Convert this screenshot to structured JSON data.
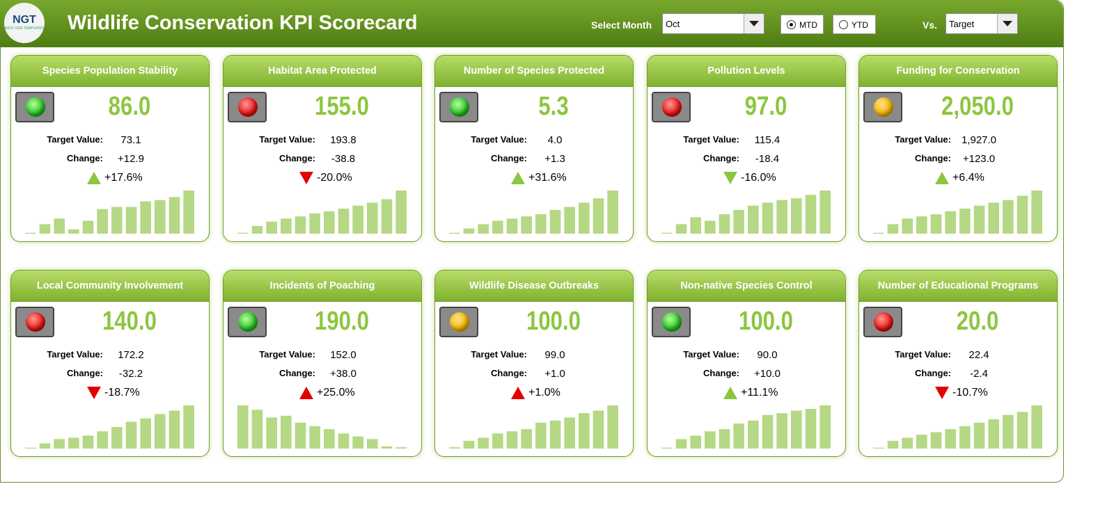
{
  "header": {
    "logo": "NGT",
    "logo_sub": "NEXT GEN TEMPLATES",
    "title": "Wildlife Conservation KPI Scorecard",
    "month_label": "Select Month",
    "month": "Oct",
    "mode_options": [
      "MTD",
      "YTD"
    ],
    "mode_selected": "MTD",
    "vs_label": "Vs.",
    "vs": "Target"
  },
  "labels": {
    "target": "Target Value:",
    "change": "Change:"
  },
  "cards": [
    {
      "title": "Species Population Stability",
      "value": "86.0",
      "light": "green",
      "target": "73.1",
      "change": "+12.9",
      "direction": "up",
      "arrow": "green",
      "pct": "+17.6%",
      "bars": [
        2,
        22,
        35,
        10,
        30,
        57,
        62,
        62,
        75,
        78,
        85,
        100
      ]
    },
    {
      "title": "Habitat Area Protected",
      "value": "155.0",
      "light": "red",
      "target": "193.8",
      "change": "-38.8",
      "direction": "down",
      "arrow": "red",
      "pct": "-20.0%",
      "bars": [
        2,
        18,
        28,
        35,
        40,
        47,
        52,
        58,
        65,
        72,
        80,
        100
      ]
    },
    {
      "title": "Number of Species Protected",
      "value": "5.3",
      "light": "green",
      "target": "4.0",
      "change": "+1.3",
      "direction": "up",
      "arrow": "green",
      "pct": "+31.6%",
      "bars": [
        2,
        12,
        22,
        30,
        35,
        40,
        45,
        55,
        62,
        72,
        82,
        100
      ]
    },
    {
      "title": "Pollution Levels",
      "value": "97.0",
      "light": "red",
      "target": "115.4",
      "change": "-18.4",
      "direction": "down",
      "arrow": "green",
      "pct": "-16.0%",
      "bars": [
        2,
        22,
        38,
        30,
        45,
        55,
        65,
        72,
        78,
        82,
        90,
        100
      ]
    },
    {
      "title": "Funding for Conservation",
      "value": "2,050.0",
      "light": "amber",
      "target": "1,927.0",
      "change": "+123.0",
      "direction": "up",
      "arrow": "green",
      "pct": "+6.4%",
      "bars": [
        2,
        22,
        35,
        40,
        45,
        52,
        58,
        65,
        72,
        78,
        88,
        100
      ]
    },
    {
      "title": "Local Community Involvement",
      "value": "140.0",
      "light": "red",
      "target": "172.2",
      "change": "-32.2",
      "direction": "down",
      "arrow": "red",
      "pct": "-18.7%",
      "bars": [
        2,
        12,
        22,
        25,
        30,
        40,
        50,
        62,
        70,
        80,
        88,
        100
      ]
    },
    {
      "title": "Incidents of Poaching",
      "value": "190.0",
      "light": "green",
      "target": "152.0",
      "change": "+38.0",
      "direction": "up",
      "arrow": "red",
      "pct": "+25.0%",
      "bars": [
        100,
        90,
        72,
        76,
        60,
        52,
        45,
        35,
        28,
        22,
        5,
        3
      ]
    },
    {
      "title": "Wildlife Disease Outbreaks",
      "value": "100.0",
      "light": "amber",
      "target": "99.0",
      "change": "+1.0",
      "direction": "up",
      "arrow": "red",
      "pct": "+1.0%",
      "bars": [
        3,
        18,
        25,
        35,
        40,
        45,
        60,
        65,
        72,
        82,
        88,
        100
      ]
    },
    {
      "title": "Non-native Species Control",
      "value": "100.0",
      "light": "green",
      "target": "90.0",
      "change": "+10.0",
      "direction": "up",
      "arrow": "green",
      "pct": "+11.1%",
      "bars": [
        2,
        22,
        30,
        40,
        45,
        58,
        65,
        78,
        82,
        88,
        92,
        100
      ]
    },
    {
      "title": "Number of Educational Programs",
      "value": "20.0",
      "light": "red",
      "target": "22.4",
      "change": "-2.4",
      "direction": "down",
      "arrow": "red",
      "pct": "-10.7%",
      "bars": [
        2,
        18,
        25,
        32,
        38,
        45,
        52,
        60,
        68,
        78,
        85,
        100
      ]
    }
  ]
}
